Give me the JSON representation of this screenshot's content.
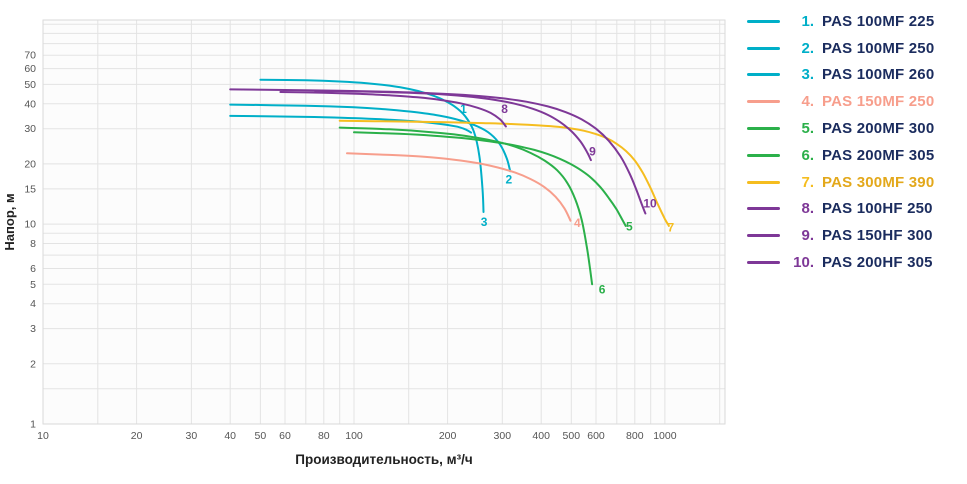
{
  "chart_data": {
    "type": "line",
    "title": "",
    "xlabel": "Производительность, м³/ч",
    "ylabel": "Напор, м",
    "x_scale": "log",
    "y_scale": "log",
    "x_range": [
      10,
      1560
    ],
    "y_range": [
      1,
      105
    ],
    "x_ticks_labeled": [
      10,
      20,
      30,
      40,
      50,
      60,
      80,
      100,
      200,
      300,
      400,
      500,
      600,
      800,
      1000
    ],
    "x_gridlines": [
      10,
      15,
      20,
      30,
      40,
      50,
      60,
      70,
      80,
      90,
      100,
      150,
      200,
      300,
      400,
      500,
      600,
      700,
      800,
      900,
      1000,
      1500
    ],
    "y_ticks_labeled": [
      1,
      2,
      3,
      4,
      5,
      6,
      8,
      10,
      15,
      20,
      30,
      40,
      50,
      60,
      70
    ],
    "y_gridlines": [
      1,
      1.5,
      2,
      3,
      4,
      5,
      6,
      7,
      8,
      9,
      10,
      15,
      20,
      30,
      40,
      50,
      60,
      70,
      80,
      90,
      100
    ],
    "grid": true,
    "legend_position": "right",
    "series": [
      {
        "id": "1",
        "name": "PAS 100MF 225",
        "color": "#00afc8",
        "label_pos": [
          225,
          36
        ],
        "points": [
          [
            40,
            34.8
          ],
          [
            70,
            34.4
          ],
          [
            100,
            33.9
          ],
          [
            130,
            33.3
          ],
          [
            160,
            32.6
          ],
          [
            190,
            31.7
          ],
          [
            215,
            30.7
          ],
          [
            230,
            29.6
          ],
          [
            238,
            28.7
          ]
        ]
      },
      {
        "id": "2",
        "name": "PAS 100MF 250",
        "color": "#00afc8",
        "label_pos": [
          315,
          16
        ],
        "points": [
          [
            40,
            39.6
          ],
          [
            70,
            39.1
          ],
          [
            100,
            38.4
          ],
          [
            130,
            37.4
          ],
          [
            160,
            36.2
          ],
          [
            190,
            34.8
          ],
          [
            220,
            33
          ],
          [
            250,
            30.8
          ],
          [
            275,
            28.2
          ],
          [
            295,
            25
          ],
          [
            310,
            21.3
          ],
          [
            318,
            18.4
          ]
        ]
      },
      {
        "id": "3",
        "name": "PAS 100MF 260",
        "color": "#00afc8",
        "label_pos": [
          262,
          9.8
        ],
        "points": [
          [
            50,
            52.8
          ],
          [
            70,
            52.4
          ],
          [
            90,
            51.7
          ],
          [
            110,
            50.7
          ],
          [
            130,
            49.3
          ],
          [
            150,
            47.5
          ],
          [
            170,
            45.2
          ],
          [
            190,
            42.4
          ],
          [
            210,
            38.9
          ],
          [
            228,
            34.6
          ],
          [
            243,
            29
          ],
          [
            253,
            22
          ],
          [
            259,
            15
          ],
          [
            261,
            11.5
          ]
        ]
      },
      {
        "id": "4",
        "name": "PAS 150MF 250",
        "color": "#f79e8c",
        "label_pos": [
          523,
          9.7
        ],
        "points": [
          [
            95,
            22.6
          ],
          [
            130,
            22.2
          ],
          [
            170,
            21.7
          ],
          [
            210,
            21
          ],
          [
            250,
            20.2
          ],
          [
            290,
            19.2
          ],
          [
            330,
            18.1
          ],
          [
            370,
            16.8
          ],
          [
            410,
            15.3
          ],
          [
            445,
            13.7
          ],
          [
            475,
            12
          ],
          [
            497,
            10.4
          ]
        ]
      },
      {
        "id": "5",
        "name": "PAS 200MF 300",
        "color": "#2bb04a",
        "label_pos": [
          768,
          9.3
        ],
        "points": [
          [
            100,
            28.8
          ],
          [
            140,
            28.3
          ],
          [
            180,
            27.7
          ],
          [
            220,
            27
          ],
          [
            260,
            26.2
          ],
          [
            300,
            25.4
          ],
          [
            340,
            24.5
          ],
          [
            380,
            23.5
          ],
          [
            420,
            22.4
          ],
          [
            460,
            21.2
          ],
          [
            500,
            19.9
          ],
          [
            540,
            18.5
          ],
          [
            580,
            17
          ],
          [
            620,
            15.3
          ],
          [
            660,
            13.5
          ],
          [
            700,
            11.8
          ],
          [
            730,
            10.5
          ],
          [
            748,
            9.8
          ]
        ]
      },
      {
        "id": "6",
        "name": "PAS 200MF 305",
        "color": "#2bb04a",
        "label_pos": [
          628,
          4.5
        ],
        "points": [
          [
            90,
            30.4
          ],
          [
            130,
            29.8
          ],
          [
            170,
            29
          ],
          [
            210,
            28.1
          ],
          [
            250,
            27
          ],
          [
            290,
            25.8
          ],
          [
            330,
            24.4
          ],
          [
            370,
            22.7
          ],
          [
            410,
            20.8
          ],
          [
            450,
            18.6
          ],
          [
            485,
            16.1
          ],
          [
            515,
            13.3
          ],
          [
            540,
            10.5
          ],
          [
            560,
            7.8
          ],
          [
            575,
            5.9
          ],
          [
            583,
            5
          ]
        ]
      },
      {
        "id": "7",
        "name": "PAS 300MF 390",
        "color": "#f5bd1f",
        "label_pos": [
          1045,
          9.2
        ],
        "points": [
          [
            90,
            32.9
          ],
          [
            140,
            32.6
          ],
          [
            200,
            32.3
          ],
          [
            260,
            32
          ],
          [
            320,
            31.7
          ],
          [
            380,
            31.3
          ],
          [
            440,
            30.8
          ],
          [
            500,
            30.1
          ],
          [
            550,
            29.3
          ],
          [
            600,
            28.2
          ],
          [
            650,
            26.9
          ],
          [
            700,
            25.2
          ],
          [
            750,
            23.2
          ],
          [
            800,
            20.8
          ],
          [
            850,
            18
          ],
          [
            900,
            15.1
          ],
          [
            950,
            12.5
          ],
          [
            1000,
            10.6
          ],
          [
            1030,
            9.8
          ]
        ]
      },
      {
        "id": "8",
        "name": "PAS 100HF 250",
        "color": "#7e3897",
        "label_pos": [
          305,
          36
        ],
        "points": [
          [
            58,
            45.8
          ],
          [
            80,
            45.4
          ],
          [
            105,
            44.8
          ],
          [
            130,
            44.1
          ],
          [
            160,
            43.1
          ],
          [
            190,
            41.8
          ],
          [
            220,
            40.2
          ],
          [
            250,
            38.2
          ],
          [
            275,
            36
          ],
          [
            295,
            33.4
          ],
          [
            308,
            30.8
          ]
        ]
      },
      {
        "id": "9",
        "name": "PAS 150HF 300",
        "color": "#7e3897",
        "label_pos": [
          585,
          22
        ],
        "points": [
          [
            75,
            46.4
          ],
          [
            110,
            46
          ],
          [
            150,
            45.4
          ],
          [
            195,
            44.5
          ],
          [
            240,
            43.3
          ],
          [
            285,
            41.8
          ],
          [
            330,
            40
          ],
          [
            375,
            37.8
          ],
          [
            420,
            35.2
          ],
          [
            460,
            32.4
          ],
          [
            500,
            29.2
          ],
          [
            535,
            25.9
          ],
          [
            562,
            22.9
          ],
          [
            578,
            20.9
          ]
        ]
      },
      {
        "id": "10",
        "name": "PAS 200HF 305",
        "color": "#7e3897",
        "label_pos": [
          895,
          12.1
        ],
        "points": [
          [
            40,
            47.2
          ],
          [
            60,
            46.9
          ],
          [
            90,
            46.5
          ],
          [
            130,
            45.9
          ],
          [
            180,
            45.1
          ],
          [
            240,
            44
          ],
          [
            300,
            42.6
          ],
          [
            360,
            40.9
          ],
          [
            420,
            38.8
          ],
          [
            480,
            36.3
          ],
          [
            540,
            33.4
          ],
          [
            600,
            30
          ],
          [
            660,
            26.1
          ],
          [
            720,
            21.8
          ],
          [
            770,
            17.9
          ],
          [
            810,
            14.8
          ],
          [
            845,
            12.4
          ],
          [
            865,
            11.3
          ]
        ]
      }
    ]
  },
  "legend": {
    "items": [
      {
        "num": "1.",
        "name": "PAS 100MF 225",
        "color": "#00afc8",
        "name_color": "#1b2c5e"
      },
      {
        "num": "2.",
        "name": "PAS 100MF 250",
        "color": "#00afc8",
        "name_color": "#1b2c5e"
      },
      {
        "num": "3.",
        "name": "PAS 100MF 260",
        "color": "#00afc8",
        "name_color": "#1b2c5e"
      },
      {
        "num": "4.",
        "name": "PAS 150MF 250",
        "color": "#f79e8c",
        "name_color": "#f79e8c"
      },
      {
        "num": "5.",
        "name": "PAS 200MF 300",
        "color": "#2bb04a",
        "name_color": "#1b2c5e"
      },
      {
        "num": "6.",
        "name": "PAS 200MF 305",
        "color": "#2bb04a",
        "name_color": "#1b2c5e"
      },
      {
        "num": "7.",
        "name": "PAS 300MF 390",
        "color": "#f5bd1f",
        "name_color": "#e3a81b"
      },
      {
        "num": "8.",
        "name": "PAS 100HF 250",
        "color": "#7e3897",
        "name_color": "#1b2c5e"
      },
      {
        "num": "9.",
        "name": "PAS 150HF 300",
        "color": "#7e3897",
        "name_color": "#1b2c5e"
      },
      {
        "num": "10.",
        "name": "PAS 200HF 305",
        "color": "#7e3897",
        "name_color": "#1b2c5e"
      }
    ]
  }
}
